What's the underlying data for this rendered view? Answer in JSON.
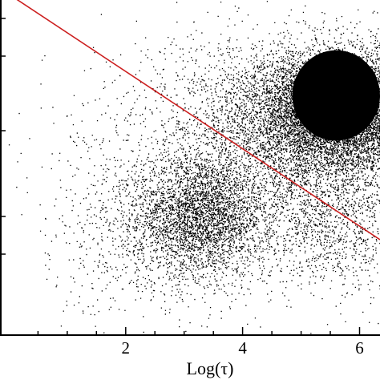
{
  "chart_data": {
    "type": "scatter",
    "title": "",
    "xlabel": "Log(τ)",
    "ylabel": "",
    "xlim": [
      -0.15,
      6.35
    ],
    "ylim": [
      0,
      10
    ],
    "x_ticks": [
      {
        "value": 2,
        "label": "2"
      },
      {
        "value": 4,
        "label": "4"
      },
      {
        "value": 6,
        "label": "6"
      }
    ],
    "grid": false,
    "legend": "none",
    "colors": {
      "points": "#000000",
      "fit_line": "#cc1f1f",
      "axes": "#000000",
      "background": "#ffffff"
    },
    "series": [
      {
        "kind": "points",
        "clusters": [
          {
            "cx": 3.3,
            "cy": 3.6,
            "sx": 0.55,
            "sy": 0.9,
            "n": 3200
          },
          {
            "cx": 5.7,
            "cy": 6.7,
            "sx": 0.75,
            "sy": 0.9,
            "n": 9000
          },
          {
            "cx": 4.8,
            "cy": 6.3,
            "sx": 1.2,
            "sy": 1.2,
            "n": 2600
          },
          {
            "cx": 2.5,
            "cy": 3.2,
            "sx": 0.9,
            "sy": 1.2,
            "n": 800
          },
          {
            "cx": 5.4,
            "cy": 3.5,
            "sx": 0.9,
            "sy": 1.1,
            "n": 1600
          },
          {
            "cx": 3.6,
            "cy": 5.0,
            "sx": 1.6,
            "sy": 2.2,
            "n": 700
          }
        ],
        "dense_region": {
          "x": [
            4.85,
            6.35
          ],
          "y": [
            5.8,
            8.5
          ]
        }
      },
      {
        "kind": "fit-line",
        "x": [
          -0.15,
          6.35
        ],
        "y": [
          10.35,
          2.85
        ]
      }
    ]
  }
}
